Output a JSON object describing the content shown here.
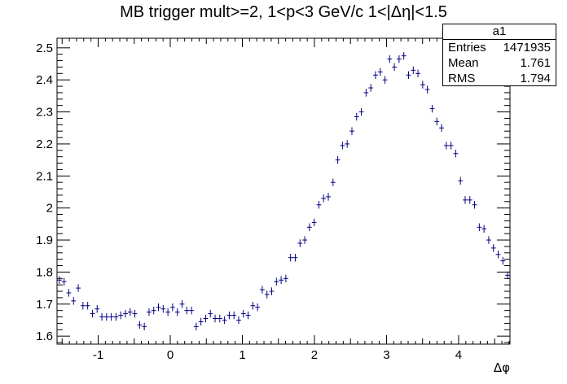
{
  "chart_data": {
    "type": "scatter",
    "title": "MB trigger mult>=2, 1<p<3 GeV/c 1<|Δη|<1.5",
    "xlabel": "Δφ",
    "ylabel": "",
    "xlim": [
      -1.5708,
      4.7124
    ],
    "ylim": [
      1.575,
      2.53
    ],
    "x_ticks": [
      "-1",
      "0",
      "1",
      "2",
      "3",
      "4"
    ],
    "y_ticks": [
      "1.6",
      "1.7",
      "1.8",
      "1.9",
      "2",
      "2.1",
      "2.2",
      "2.3",
      "2.4",
      "2.5"
    ],
    "x_tick_values": [
      -1,
      0,
      1,
      2,
      3,
      4
    ],
    "y_tick_values": [
      1.6,
      1.7,
      1.8,
      1.9,
      2.0,
      2.1,
      2.2,
      2.3,
      2.4,
      2.5
    ],
    "grid": false,
    "marker_color": "#000080",
    "y": [
      1.775,
      1.77,
      1.735,
      1.71,
      1.75,
      1.695,
      1.695,
      1.67,
      1.685,
      1.66,
      1.66,
      1.66,
      1.66,
      1.665,
      1.67,
      1.675,
      1.67,
      1.635,
      1.63,
      1.675,
      1.68,
      1.69,
      1.685,
      1.675,
      1.69,
      1.675,
      1.7,
      1.68,
      1.68,
      1.63,
      1.645,
      1.655,
      1.67,
      1.655,
      1.655,
      1.65,
      1.665,
      1.665,
      1.65,
      1.67,
      1.665,
      1.695,
      1.69,
      1.745,
      1.73,
      1.74,
      1.77,
      1.775,
      1.78,
      1.845,
      1.845,
      1.89,
      1.9,
      1.94,
      1.955,
      2.01,
      2.03,
      2.035,
      2.08,
      2.15,
      2.195,
      2.2,
      2.24,
      2.285,
      2.3,
      2.36,
      2.375,
      2.415,
      2.425,
      2.4,
      2.465,
      2.44,
      2.465,
      2.475,
      2.415,
      2.43,
      2.42,
      2.385,
      2.37,
      2.31,
      2.27,
      2.25,
      2.195,
      2.195,
      2.17,
      2.085,
      2.025,
      2.025,
      2.01,
      1.94,
      1.935,
      1.9,
      1.875,
      1.855,
      1.835,
      1.79
    ],
    "y_errors": 0.012,
    "stats": {
      "name": "a1",
      "rows": [
        {
          "label": "Entries",
          "value": "1471935"
        },
        {
          "label": "Mean",
          "value": "1.761"
        },
        {
          "label": "RMS",
          "value": "1.794"
        }
      ]
    }
  }
}
